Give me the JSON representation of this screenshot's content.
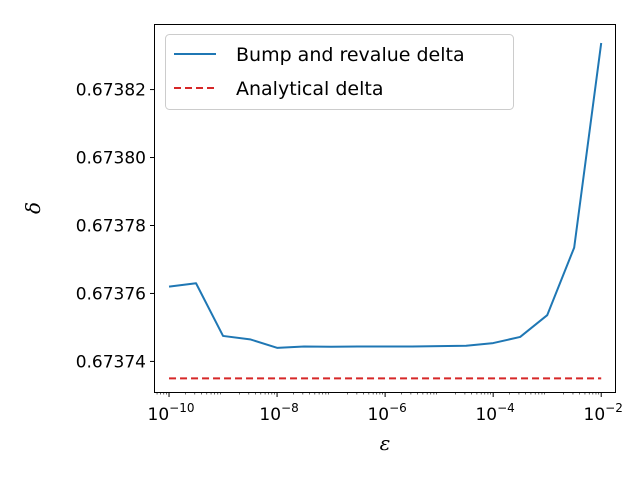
{
  "chart_data": {
    "type": "line",
    "xscale": "log",
    "xlabel": "ε",
    "ylabel": "δ",
    "xlim": [
      5.5e-11,
      0.018
    ],
    "ylim": [
      0.673731,
      0.673839
    ],
    "xticks": [
      {
        "value": 1e-10,
        "base": "10",
        "exp": "−10"
      },
      {
        "value": 1e-08,
        "base": "10",
        "exp": "−8"
      },
      {
        "value": 1e-06,
        "base": "10",
        "exp": "−6"
      },
      {
        "value": 0.0001,
        "base": "10",
        "exp": "−4"
      },
      {
        "value": 0.01,
        "base": "10",
        "exp": "−2"
      }
    ],
    "yticks": [
      {
        "value": 0.67374,
        "label": "0.67374"
      },
      {
        "value": 0.67376,
        "label": "0.67376"
      },
      {
        "value": 0.67378,
        "label": "0.67378"
      },
      {
        "value": 0.6738,
        "label": "0.67380"
      },
      {
        "value": 0.67382,
        "label": "0.67382"
      }
    ],
    "grid": false,
    "legend_position": "top-left",
    "series": [
      {
        "name": "Bump and revalue delta",
        "color": "#1f77b4",
        "style": "solid",
        "x": [
          1e-10,
          3.16e-10,
          1e-09,
          3.16e-09,
          1e-08,
          3.16e-08,
          1e-07,
          3.16e-07,
          1e-06,
          3.16e-06,
          1e-05,
          3.16e-05,
          0.0001,
          0.000316,
          0.001,
          0.00316,
          0.01
        ],
        "y": [
          0.673762,
          0.673763,
          0.6737475,
          0.6737465,
          0.673744,
          0.6737444,
          0.6737443,
          0.6737444,
          0.6737444,
          0.6737444,
          0.6737445,
          0.6737446,
          0.6737454,
          0.6737472,
          0.6737536,
          0.6737735,
          0.6738337
        ]
      },
      {
        "name": "Analytical delta",
        "color": "#d62728",
        "style": "dashed",
        "x": [
          1e-10,
          0.01
        ],
        "y": [
          0.673735,
          0.673735
        ]
      }
    ]
  }
}
